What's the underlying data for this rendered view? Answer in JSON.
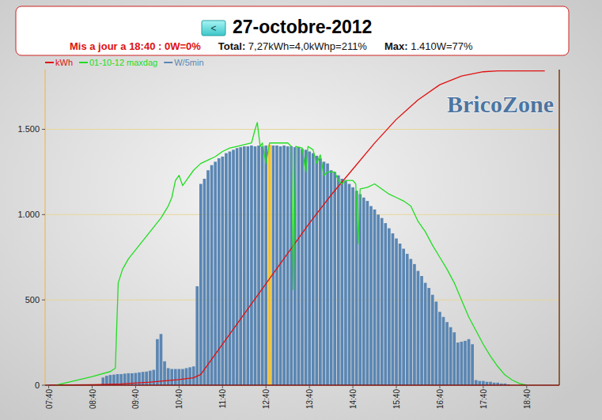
{
  "chart_data": {
    "type": "bar",
    "title": "27-octobre-2012",
    "nav_button": "<",
    "subtitle": [
      "Mis a jour a 18:40 : 0W=0%",
      "Total: 7,27kWh=4,0kWhp=211%",
      "Max: 1.410W=77%"
    ],
    "watermark": "BricoZone",
    "xlim": [
      455,
      1165
    ],
    "xticks": [
      {
        "value": 460,
        "label": "07:40"
      },
      {
        "value": 520,
        "label": "08:40"
      },
      {
        "value": 580,
        "label": "09:40"
      },
      {
        "value": 640,
        "label": "10:40"
      },
      {
        "value": 700,
        "label": "11:40"
      },
      {
        "value": 760,
        "label": "12:40"
      },
      {
        "value": 820,
        "label": "13:40"
      },
      {
        "value": 880,
        "label": "14:40"
      },
      {
        "value": 940,
        "label": "15:40"
      },
      {
        "value": 1000,
        "label": "16:40"
      },
      {
        "value": 1060,
        "label": "17:40"
      },
      {
        "value": 1120,
        "label": "18:40"
      }
    ],
    "ylim": [
      0,
      1850
    ],
    "yticks": [
      0,
      500,
      {
        "value": 1000,
        "label": "1.000"
      },
      {
        "value": 1500,
        "label": "1.500"
      }
    ],
    "y2lim": [
      0,
      7.3
    ],
    "grid": true,
    "legend": "top-left",
    "series": [
      {
        "name": "kWh",
        "type": "line",
        "color": "#e01010",
        "axis": "y2",
        "x": [
          460,
          520,
          560,
          600,
          640,
          660,
          670,
          700,
          730,
          760,
          790,
          820,
          850,
          880,
          910,
          940,
          970,
          1000,
          1030,
          1060,
          1080,
          1110,
          1145
        ],
        "values": [
          0,
          0.01,
          0.03,
          0.07,
          0.13,
          0.17,
          0.25,
          0.95,
          1.65,
          2.35,
          3.05,
          3.75,
          4.4,
          5.0,
          5.6,
          6.15,
          6.6,
          6.95,
          7.15,
          7.25,
          7.27,
          7.27,
          7.27
        ]
      },
      {
        "name": "01-10-12 maxdag",
        "type": "line",
        "color": "#22dd22",
        "x": [
          470,
          490,
          520,
          545,
          552,
          556,
          562,
          570,
          585,
          600,
          615,
          625,
          630,
          635,
          640,
          645,
          650,
          660,
          670,
          680,
          690,
          700,
          710,
          720,
          730,
          740,
          745,
          748,
          752,
          755,
          760,
          765,
          775,
          790,
          795,
          798,
          801,
          810,
          815,
          818,
          825,
          830,
          835,
          840,
          845,
          855,
          860,
          865,
          870,
          880,
          884,
          887,
          890,
          900,
          910,
          920,
          930,
          940,
          950,
          960,
          970,
          980,
          990,
          1000,
          1010,
          1020,
          1030,
          1040,
          1050,
          1060,
          1070,
          1080,
          1090,
          1100,
          1110,
          1120
        ],
        "values": [
          0,
          20,
          50,
          80,
          100,
          600,
          680,
          740,
          820,
          900,
          980,
          1050,
          1100,
          1200,
          1230,
          1170,
          1200,
          1260,
          1300,
          1320,
          1340,
          1370,
          1390,
          1400,
          1410,
          1420,
          1500,
          1540,
          1400,
          1420,
          1300,
          1420,
          1420,
          1420,
          1400,
          560,
          1400,
          1390,
          1250,
          1400,
          1380,
          1300,
          1350,
          1230,
          1250,
          1250,
          1200,
          1180,
          1200,
          1200,
          1180,
          830,
          1150,
          1160,
          1180,
          1150,
          1120,
          1100,
          1080,
          1050,
          960,
          900,
          820,
          750,
          680,
          600,
          500,
          400,
          320,
          240,
          170,
          110,
          60,
          30,
          10,
          0
        ]
      },
      {
        "name": "W/5min",
        "type": "bar",
        "color": "#5a86b3",
        "x": [
          535,
          540,
          545,
          550,
          555,
          560,
          565,
          570,
          575,
          580,
          585,
          590,
          595,
          600,
          605,
          610,
          615,
          620,
          625,
          630,
          635,
          640,
          645,
          650,
          655,
          660,
          665,
          670,
          675,
          680,
          685,
          690,
          695,
          700,
          705,
          710,
          715,
          720,
          725,
          730,
          735,
          740,
          745,
          750,
          755,
          760,
          765,
          770,
          775,
          780,
          785,
          790,
          795,
          800,
          805,
          810,
          815,
          820,
          825,
          830,
          835,
          840,
          845,
          850,
          855,
          860,
          865,
          870,
          875,
          880,
          885,
          890,
          895,
          900,
          905,
          910,
          915,
          920,
          925,
          930,
          935,
          940,
          945,
          950,
          955,
          960,
          965,
          970,
          975,
          980,
          985,
          990,
          995,
          1000,
          1005,
          1010,
          1015,
          1020,
          1025,
          1030,
          1035,
          1040,
          1045,
          1050,
          1055,
          1060,
          1065,
          1070,
          1075,
          1080,
          1085,
          1090,
          1095
        ],
        "values": [
          45,
          55,
          60,
          62,
          65,
          65,
          68,
          70,
          70,
          72,
          75,
          78,
          80,
          85,
          90,
          270,
          300,
          140,
          100,
          95,
          95,
          95,
          95,
          100,
          105,
          110,
          580,
          1180,
          1210,
          1260,
          1290,
          1310,
          1330,
          1340,
          1360,
          1370,
          1380,
          1390,
          1395,
          1400,
          1400,
          1405,
          1400,
          1405,
          1400,
          1405,
          1410,
          1405,
          1405,
          1400,
          1405,
          1400,
          1400,
          1395,
          1395,
          1385,
          1380,
          1370,
          1360,
          1345,
          1330,
          1310,
          1300,
          1260,
          1250,
          1230,
          1210,
          1200,
          1180,
          1160,
          1140,
          1120,
          1100,
          1080,
          1050,
          1030,
          1000,
          980,
          950,
          920,
          890,
          860,
          830,
          800,
          770,
          740,
          710,
          670,
          640,
          600,
          570,
          530,
          490,
          430,
          400,
          370,
          340,
          310,
          250,
          255,
          260,
          270,
          240,
          30,
          25,
          25,
          20,
          20,
          15,
          15,
          10,
          10,
          5
        ]
      }
    ]
  }
}
